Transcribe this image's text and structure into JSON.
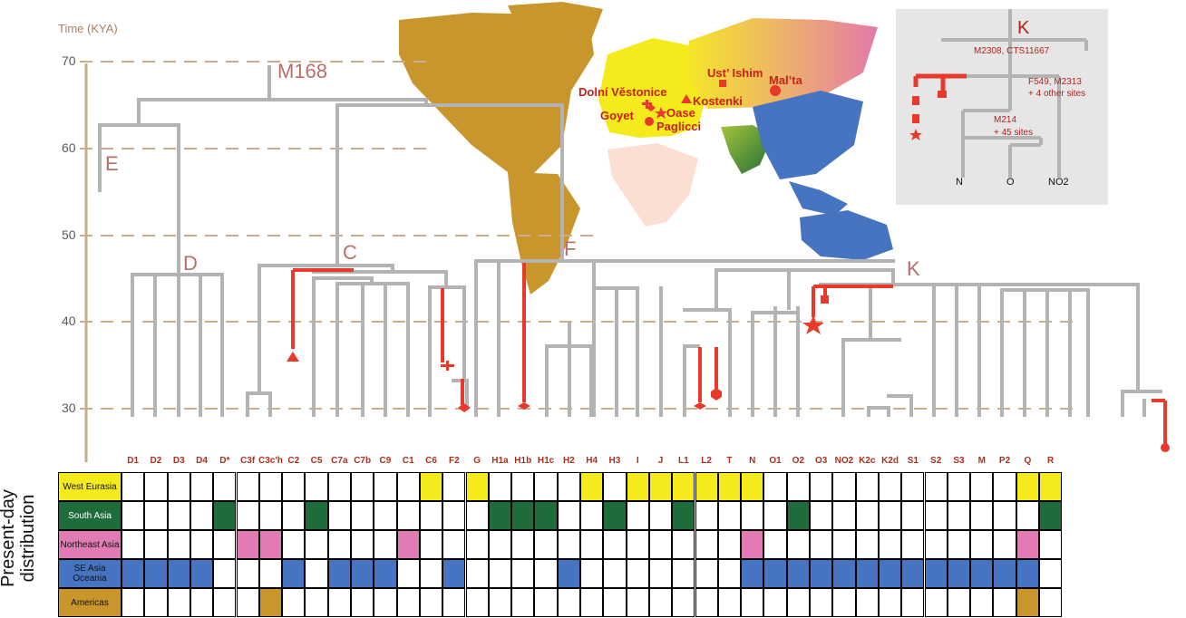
{
  "axis": {
    "title": "Time (KYA)",
    "ticks": [
      {
        "label": "70",
        "value": 70
      },
      {
        "label": "60",
        "value": 60
      },
      {
        "label": "50",
        "value": 50
      },
      {
        "label": "40",
        "value": 40
      },
      {
        "label": "30",
        "value": 30
      }
    ]
  },
  "clades": [
    {
      "label": "M168"
    },
    {
      "label": "E"
    },
    {
      "label": "D"
    },
    {
      "label": "C"
    },
    {
      "label": "F"
    },
    {
      "label": "K"
    }
  ],
  "haplogroups": [
    "D1",
    "D2",
    "D3",
    "D4",
    "D*",
    "C3f",
    "C3c'h",
    "C2",
    "C5",
    "C7a",
    "C7b",
    "C9",
    "C1",
    "C6",
    "F2",
    "G",
    "H1a",
    "H1b",
    "H1c",
    "H2",
    "H4",
    "H3",
    "I",
    "J",
    "L1",
    "L2",
    "T",
    "N",
    "O1",
    "O2",
    "O3",
    "NO2",
    "K2c",
    "K2d",
    "S1",
    "S2",
    "S3",
    "M",
    "P2",
    "Q",
    "R"
  ],
  "sites": [
    {
      "label": "Ust’ Ishim",
      "marker": "square"
    },
    {
      "label": "Mal’ta",
      "marker": "circle"
    },
    {
      "label": "Dolní Věstonice",
      "marker": "cross"
    },
    {
      "label": "Kostenki",
      "marker": "triangle"
    },
    {
      "label": "Goyet",
      "marker": "diamond"
    },
    {
      "label": "Oase",
      "marker": "star"
    },
    {
      "label": "Paglicci",
      "marker": "circle"
    }
  ],
  "inset": {
    "title": "K",
    "snp1": "M2308, CTS11667",
    "snp2a": "F549, M2313",
    "snp2b": "+ 4 other sites",
    "snp3a": "M214",
    "snp3b": "+ 45 sites",
    "leaves": [
      "N",
      "O",
      "NO2"
    ]
  },
  "distribution": {
    "title_line1": "Present-day",
    "title_line2": "distribution",
    "regions": [
      {
        "label": "West Eurasia",
        "color": "#f5ea1c",
        "filled": [
          "C6",
          "G",
          "H4",
          "I",
          "J",
          "L1",
          "L2",
          "T",
          "N",
          "Q",
          "R"
        ]
      },
      {
        "label": "South Asia",
        "color": "#1e6b3c",
        "filled": [
          "D*",
          "C5",
          "H1a",
          "H1b",
          "H1c",
          "H3",
          "L1",
          "O2",
          "R"
        ]
      },
      {
        "label": "Northeast Asia",
        "color": "#e07bb3",
        "filled": [
          "C3f",
          "C3c'h",
          "C1",
          "N",
          "Q"
        ]
      },
      {
        "label": "SE Asia Oceania",
        "color": "#4674c1",
        "filled": [
          "D1",
          "D2",
          "D3",
          "D4",
          "C2",
          "C7a",
          "C7b",
          "C9",
          "F2",
          "H2",
          "N",
          "O1",
          "O2",
          "O3",
          "NO2",
          "K2c",
          "K2d",
          "S1",
          "S2",
          "S3",
          "M",
          "P2",
          "Q"
        ]
      },
      {
        "label": "Americas",
        "color": "#c8962c",
        "filled": [
          "C3c'h",
          "Q"
        ]
      }
    ]
  },
  "colors": {
    "tree": "#b3b3b3",
    "ancient": "#e8392b",
    "clade_letter": "#b86f6c",
    "axis": "#a9825c",
    "inset_bg": "#e6e6e6"
  }
}
